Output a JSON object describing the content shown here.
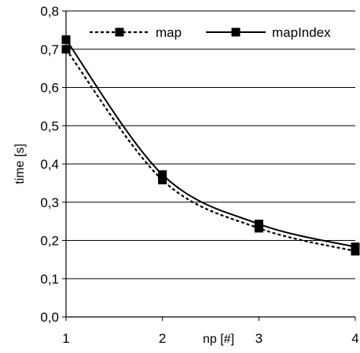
{
  "chart_data": {
    "type": "line",
    "x": [
      1,
      2,
      3,
      4
    ],
    "xticks": [
      "1",
      "2",
      "3",
      "4"
    ],
    "yticks": [
      "0,0",
      "0,1",
      "0,2",
      "0,3",
      "0,4",
      "0,5",
      "0,6",
      "0,7",
      "0,8"
    ],
    "xlabel": "np [#]",
    "ylabel": "time [s]",
    "xlim": [
      1,
      4
    ],
    "ylim": [
      0,
      0.8
    ],
    "grid": "horizontal",
    "legend_position": "top",
    "series": [
      {
        "name": "map",
        "values": [
          0.7,
          0.358,
          0.232,
          0.172
        ],
        "line_style": "dotted",
        "marker": "square",
        "color": "#000000"
      },
      {
        "name": "mapIndex",
        "values": [
          0.725,
          0.372,
          0.243,
          0.183
        ],
        "line_style": "solid",
        "marker": "square",
        "color": "#000000"
      }
    ]
  }
}
